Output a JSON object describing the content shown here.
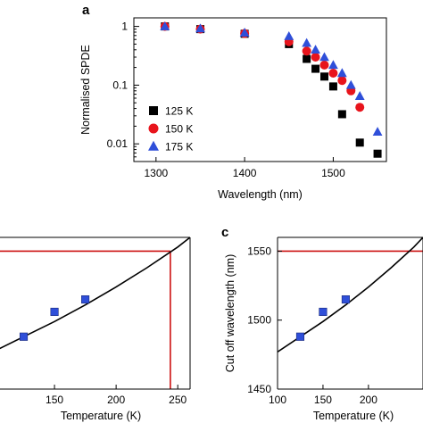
{
  "panel_labels": {
    "a": "a",
    "c": "c"
  },
  "chart_data": [
    {
      "type": "scatter",
      "panel": "a",
      "xlabel": "Wavelength (nm)",
      "ylabel": "Normalised SPDE",
      "xlim": [
        1275,
        1560
      ],
      "ylim": [
        0.005,
        1.4
      ],
      "yscale": "log",
      "xticks": [
        1300,
        1400,
        1500
      ],
      "xtick_labels": [
        "1300",
        "1400",
        "1500"
      ],
      "yticks": [
        1,
        0.1,
        0.01
      ],
      "ytick_labels": [
        "1",
        "0.1",
        "0.01"
      ],
      "legend_position": "bottom-left",
      "series": [
        {
          "name": "125 K",
          "marker": "square",
          "color": "#000000",
          "x": [
            1310,
            1350,
            1400,
            1450,
            1470,
            1480,
            1490,
            1500,
            1510,
            1530,
            1550
          ],
          "y": [
            1.0,
            0.9,
            0.75,
            0.5,
            0.28,
            0.19,
            0.14,
            0.095,
            0.032,
            0.0105,
            0.0068
          ]
        },
        {
          "name": "150 K",
          "marker": "circle",
          "color": "#e8141c",
          "x": [
            1310,
            1350,
            1400,
            1450,
            1470,
            1480,
            1490,
            1500,
            1510,
            1520,
            1530
          ],
          "y": [
            1.0,
            0.9,
            0.76,
            0.55,
            0.38,
            0.3,
            0.22,
            0.16,
            0.12,
            0.08,
            0.042
          ]
        },
        {
          "name": "175 K",
          "marker": "triangle",
          "color": "#2f4fd9",
          "x": [
            1310,
            1350,
            1400,
            1450,
            1470,
            1480,
            1490,
            1500,
            1510,
            1520,
            1530,
            1550
          ],
          "y": [
            1.0,
            0.92,
            0.78,
            0.68,
            0.52,
            0.4,
            0.3,
            0.22,
            0.16,
            0.1,
            0.065,
            0.016
          ]
        }
      ]
    },
    {
      "type": "scatter",
      "panel": "b",
      "xlabel": "Temperature (K)",
      "ylabel": "",
      "xlim": [
        100,
        260
      ],
      "ylim": [
        1450,
        1560
      ],
      "xticks": [
        150,
        200,
        250
      ],
      "xtick_labels": [
        "150",
        "200",
        "250"
      ],
      "series": [
        {
          "marker": "square",
          "color": "#2f4fd9",
          "x": [
            125,
            150,
            175
          ],
          "y": [
            1488,
            1506,
            1515
          ]
        }
      ],
      "fit_curve": {
        "color": "#000000",
        "x": [
          100,
          125,
          150,
          175,
          200,
          225,
          250,
          260
        ],
        "y": [
          1477,
          1488,
          1499,
          1511,
          1524,
          1538,
          1553,
          1560
        ]
      },
      "reference_lines": {
        "color": "#cc1111",
        "wavelength": 1550,
        "temperature": 244
      }
    },
    {
      "type": "scatter",
      "panel": "c",
      "xlabel": "Temperature (K)",
      "ylabel": "Cut off wavelength (nm)",
      "xlim": [
        100,
        260
      ],
      "ylim": [
        1450,
        1560
      ],
      "xticks": [
        100,
        150,
        200
      ],
      "xtick_labels": [
        "100",
        "150",
        "200"
      ],
      "yticks": [
        1450,
        1500,
        1550
      ],
      "ytick_labels": [
        "1450",
        "1500",
        "1550"
      ],
      "series": [
        {
          "marker": "square",
          "color": "#2f4fd9",
          "x": [
            125,
            150,
            175
          ],
          "y": [
            1488,
            1506,
            1515
          ]
        }
      ],
      "fit_curve": {
        "color": "#000000",
        "x": [
          100,
          125,
          150,
          175,
          200,
          225,
          250,
          260
        ],
        "y": [
          1477,
          1488,
          1499,
          1511,
          1524,
          1538,
          1553,
          1560
        ]
      },
      "reference_lines": {
        "color": "#cc1111",
        "wavelength": 1550
      }
    }
  ]
}
